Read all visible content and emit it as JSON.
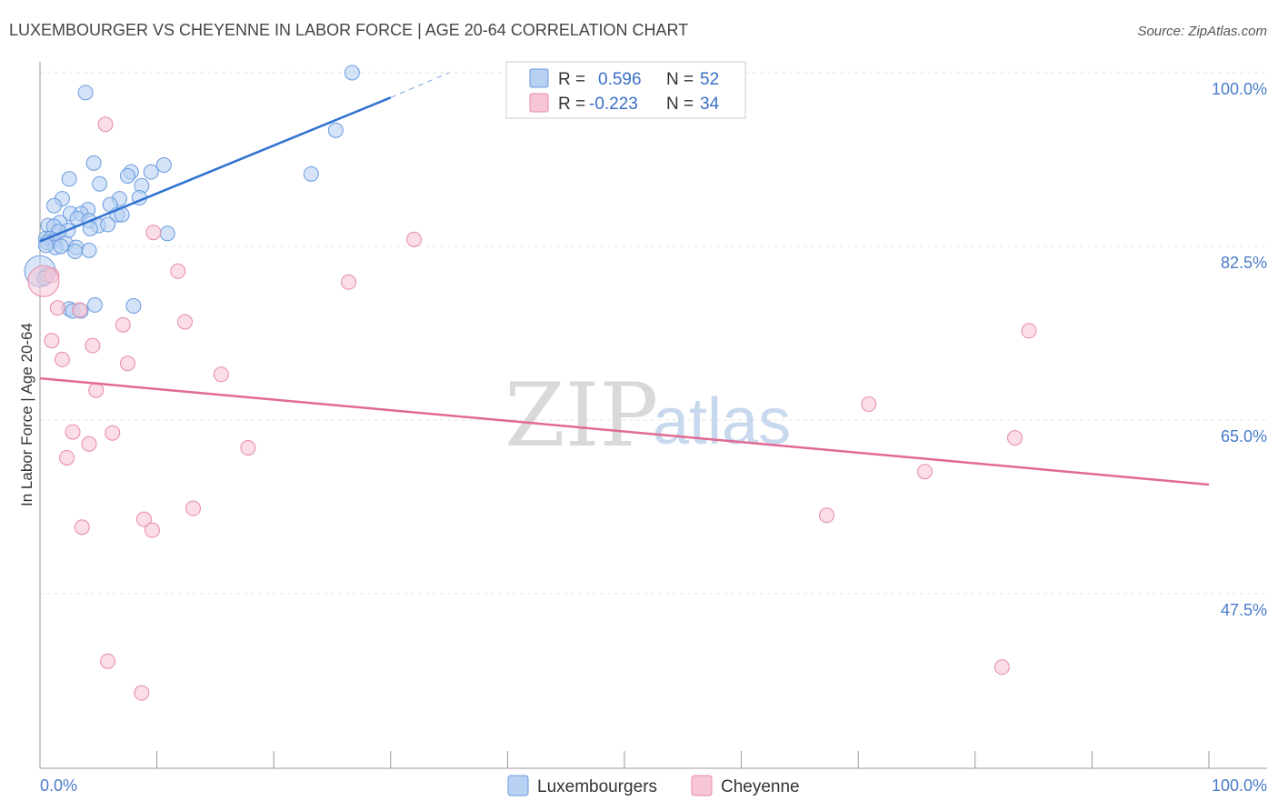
{
  "chart_data": {
    "type": "scatter",
    "title": "LUXEMBOURGER VS CHEYENNE IN LABOR FORCE | AGE 20-64 CORRELATION CHART",
    "source": "Source: ZipAtlas.com",
    "ylabel": "In Labor Force | Age 20-64",
    "xlabel": "",
    "xlim": [
      0,
      100
    ],
    "ylim": [
      31.5,
      102
    ],
    "x_tick_labels": {
      "left": "0.0%",
      "right": "100.0%"
    },
    "y_ticks": [
      {
        "value": 100.0,
        "label": "100.0%"
      },
      {
        "value": 82.5,
        "label": "82.5%"
      },
      {
        "value": 65.0,
        "label": "65.0%"
      },
      {
        "value": 47.5,
        "label": "47.5%"
      }
    ],
    "watermark": {
      "zip": "ZIP",
      "atlas": "atlas"
    },
    "legend": {
      "items": [
        {
          "r_label": "R =",
          "r_value": "0.596",
          "n_label": "N =",
          "n_value": "52"
        },
        {
          "r_label": "R =",
          "r_value": "-0.223",
          "n_label": "N =",
          "n_value": "34"
        }
      ]
    },
    "series": [
      {
        "name": "Luxembourgers",
        "color": "#6a9be0",
        "fill": "#b8d0f2",
        "trend": {
          "x0": 0,
          "y0": 83.0,
          "x1": 30,
          "y1": 97.5,
          "dash_x1": 35,
          "dash_y1": 100.0,
          "color": "#2f72d0"
        },
        "points": [
          [
            26.7,
            100.0
          ],
          [
            3.9,
            98.0
          ],
          [
            25.3,
            94.2
          ],
          [
            4.6,
            90.9
          ],
          [
            10.6,
            90.7
          ],
          [
            7.8,
            90.0
          ],
          [
            9.5,
            90.0
          ],
          [
            7.5,
            89.6
          ],
          [
            23.2,
            89.8
          ],
          [
            2.5,
            89.3
          ],
          [
            5.1,
            88.8
          ],
          [
            8.7,
            88.6
          ],
          [
            1.9,
            87.3
          ],
          [
            6.8,
            87.3
          ],
          [
            8.5,
            87.4
          ],
          [
            6.0,
            86.7
          ],
          [
            1.2,
            86.6
          ],
          [
            4.1,
            86.2
          ],
          [
            2.6,
            85.8
          ],
          [
            3.5,
            85.8
          ],
          [
            6.6,
            85.7
          ],
          [
            7.0,
            85.7
          ],
          [
            3.2,
            85.3
          ],
          [
            4.2,
            85.1
          ],
          [
            1.7,
            84.9
          ],
          [
            5.0,
            84.6
          ],
          [
            5.8,
            84.7
          ],
          [
            4.3,
            84.3
          ],
          [
            0.7,
            84.6
          ],
          [
            1.2,
            84.5
          ],
          [
            2.4,
            84.1
          ],
          [
            1.6,
            84.0
          ],
          [
            10.9,
            83.8
          ],
          [
            0.5,
            83.3
          ],
          [
            0.9,
            83.3
          ],
          [
            1.2,
            83.1
          ],
          [
            0.6,
            82.9
          ],
          [
            2.2,
            82.8
          ],
          [
            1.3,
            82.4
          ],
          [
            1.8,
            82.5
          ],
          [
            3.1,
            82.4
          ],
          [
            0.5,
            82.6
          ],
          [
            3.0,
            82.0
          ],
          [
            4.2,
            82.1
          ],
          [
            0.0,
            80.0
          ],
          [
            0.6,
            79.6
          ],
          [
            4.7,
            76.6
          ],
          [
            8.0,
            76.5
          ],
          [
            2.5,
            76.2
          ],
          [
            2.8,
            76.0
          ],
          [
            3.5,
            76.0
          ],
          [
            0.4,
            79.3
          ]
        ]
      },
      {
        "name": "Cheyenne",
        "color": "#e88aa8",
        "fill": "#f6c6d6",
        "trend": {
          "x0": 0,
          "y0": 69.2,
          "x1": 100,
          "y1": 58.5,
          "color": "#e06a93"
        },
        "points": [
          [
            5.6,
            94.8
          ],
          [
            9.7,
            83.9
          ],
          [
            32.0,
            83.2
          ],
          [
            11.8,
            80.0
          ],
          [
            1.0,
            79.6
          ],
          [
            26.4,
            78.9
          ],
          [
            1.5,
            76.3
          ],
          [
            3.4,
            76.1
          ],
          [
            12.4,
            74.9
          ],
          [
            7.1,
            74.6
          ],
          [
            84.6,
            74.0
          ],
          [
            1.0,
            73.0
          ],
          [
            4.5,
            72.5
          ],
          [
            7.5,
            70.7
          ],
          [
            1.9,
            71.1
          ],
          [
            15.5,
            69.6
          ],
          [
            4.8,
            68.0
          ],
          [
            70.9,
            66.6
          ],
          [
            2.8,
            63.8
          ],
          [
            6.2,
            63.7
          ],
          [
            4.2,
            62.6
          ],
          [
            83.4,
            63.2
          ],
          [
            17.8,
            62.2
          ],
          [
            2.3,
            61.2
          ],
          [
            75.7,
            59.8
          ],
          [
            13.1,
            56.1
          ],
          [
            8.9,
            55.0
          ],
          [
            67.3,
            55.4
          ],
          [
            3.6,
            54.2
          ],
          [
            9.6,
            53.9
          ],
          [
            5.8,
            40.7
          ],
          [
            8.7,
            37.5
          ],
          [
            82.3,
            40.1
          ],
          [
            0.3,
            79.0
          ]
        ]
      }
    ]
  }
}
